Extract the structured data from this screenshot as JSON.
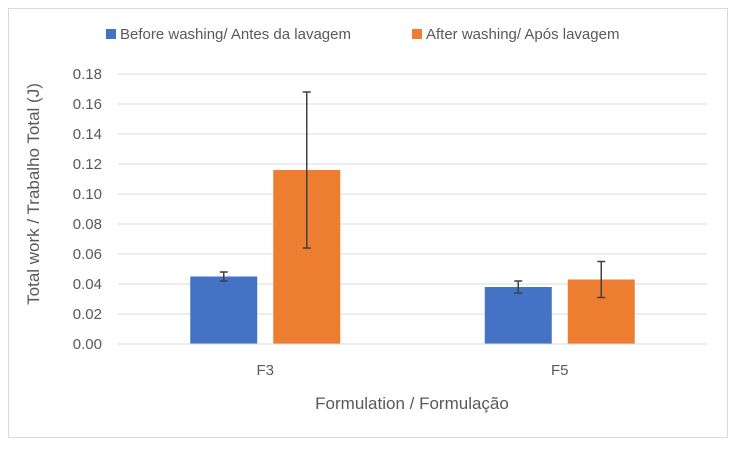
{
  "chart_data": {
    "type": "bar",
    "title": "",
    "xlabel": "Formulation / Formulação",
    "ylabel": "Total work / Trabalho Total (J)",
    "categories": [
      "F3",
      "F5"
    ],
    "ylim": [
      0,
      0.18
    ],
    "yticks": [
      0,
      0.02,
      0.04,
      0.06,
      0.08,
      0.1,
      0.12,
      0.14,
      0.16,
      0.18
    ],
    "ytick_labels": [
      "0.00",
      "0.02",
      "0.04",
      "0.06",
      "0.08",
      "0.10",
      "0.12",
      "0.14",
      "0.16",
      "0.18"
    ],
    "grid": true,
    "legend_position": "top",
    "series": [
      {
        "name": "Before washing/ Antes da lavagem",
        "color": "#4472c4",
        "values": [
          0.045,
          0.038
        ],
        "errors": [
          0.003,
          0.004
        ]
      },
      {
        "name": "After washing/ Após lavagem",
        "color": "#ed7d31",
        "values": [
          0.116,
          0.043
        ],
        "errors": [
          0.052,
          0.012
        ]
      }
    ]
  }
}
